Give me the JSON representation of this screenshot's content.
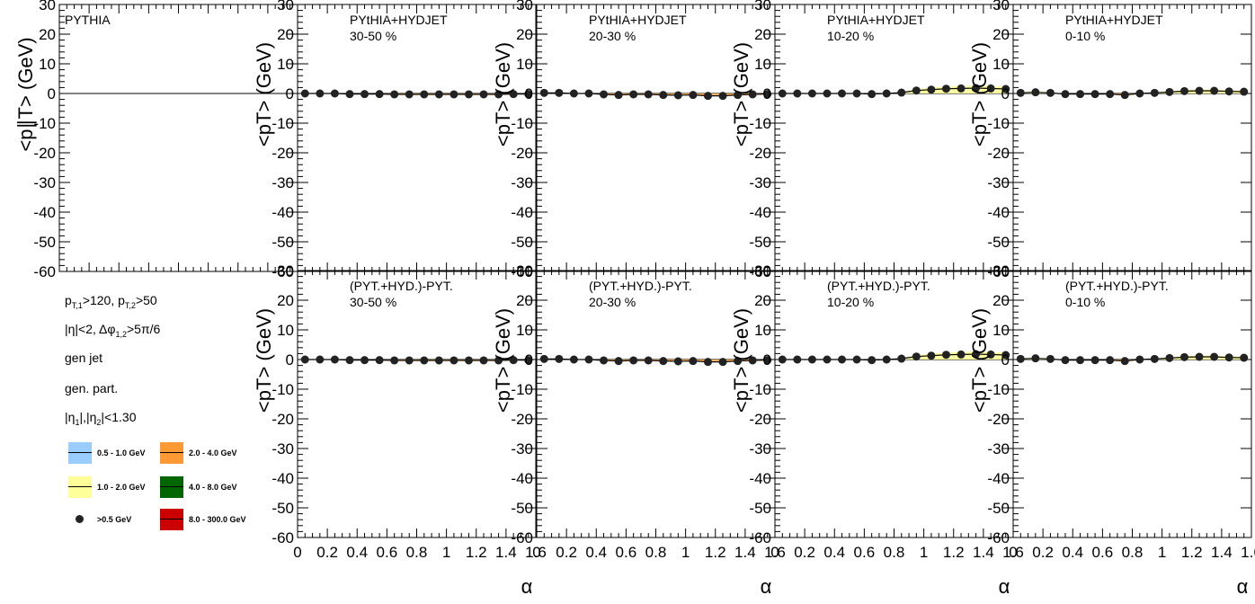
{
  "figure": {
    "xlabel": "α",
    "ylabel_top_first": "<p∥T> (GeV)",
    "ylabel_other": "<pT> (GeV)"
  },
  "legend": {
    "cuts": [
      "pT,1>120, pT,2>50",
      "|η|<2, Δφ1,2>5π/6",
      "gen jet",
      "gen. part.",
      "|η1|,|η2|<1.30"
    ],
    "entries": [
      {
        "label": "0.5 - 1.0 GeV",
        "color": "#99ccff"
      },
      {
        "label": "2.0 - 4.0 GeV",
        "color": "#ff9933"
      },
      {
        "label": "1.0 - 2.0 GeV",
        "color": "#ffff99"
      },
      {
        "label": "4.0 - 8.0 GeV",
        "color": "#006600"
      },
      {
        "label": ">0.5 GeV",
        "color": "#222222"
      },
      {
        "label": "8.0 - 300.0 GeV",
        "color": "#cc0000"
      }
    ]
  },
  "chart_data": [
    {
      "type": "scatter",
      "row": 0,
      "col": 0,
      "title": "PYTHIA",
      "subtitle": "",
      "ylim": [
        -60,
        30
      ],
      "xlim": [
        0,
        1.6
      ],
      "x": [],
      "y": []
    },
    {
      "type": "scatter",
      "row": 0,
      "col": 1,
      "title": "PYtHIA+HYDJET",
      "subtitle": "30-50 %",
      "ylim": [
        -60,
        30
      ],
      "xlim": [
        0,
        1.6
      ],
      "x": [
        0.05,
        0.15,
        0.25,
        0.35,
        0.45,
        0.55,
        0.65,
        0.75,
        0.85,
        0.95,
        1.05,
        1.15,
        1.25,
        1.35,
        1.45,
        1.55
      ],
      "y": [
        0,
        0,
        0,
        -0.2,
        -0.2,
        -0.2,
        -0.3,
        -0.3,
        -0.3,
        -0.3,
        -0.3,
        -0.3,
        -0.3,
        -0.3,
        -0.2,
        -0.2
      ]
    },
    {
      "type": "scatter",
      "row": 0,
      "col": 2,
      "title": "PYtHIA+HYDJET",
      "subtitle": "20-30 %",
      "ylim": [
        -60,
        30
      ],
      "xlim": [
        0,
        1.6
      ],
      "x": [
        0.05,
        0.15,
        0.25,
        0.35,
        0.45,
        0.55,
        0.65,
        0.75,
        0.85,
        0.95,
        1.05,
        1.15,
        1.25,
        1.35,
        1.45,
        1.55
      ],
      "y": [
        0.2,
        0.2,
        0,
        0,
        -0.3,
        -0.5,
        -0.3,
        -0.3,
        -0.5,
        -0.6,
        -0.5,
        -0.8,
        -0.8,
        -0.5,
        -0.3,
        -0.2
      ]
    },
    {
      "type": "scatter",
      "row": 0,
      "col": 3,
      "title": "PYtHIA+HYDJET",
      "subtitle": "10-20 %",
      "ylim": [
        -60,
        30
      ],
      "xlim": [
        0,
        1.6
      ],
      "x": [
        0.05,
        0.15,
        0.25,
        0.35,
        0.45,
        0.55,
        0.65,
        0.75,
        0.85,
        0.95,
        1.05,
        1.15,
        1.25,
        1.35,
        1.45,
        1.55
      ],
      "y": [
        0,
        0,
        0,
        0,
        0,
        0,
        -0.2,
        0,
        0.3,
        1,
        1.3,
        1.6,
        1.7,
        1.8,
        1.7,
        1.5
      ]
    },
    {
      "type": "scatter",
      "row": 0,
      "col": 4,
      "title": "PYtHIA+HYDJET",
      "subtitle": "0-10 %",
      "ylim": [
        -60,
        30
      ],
      "xlim": [
        0,
        1.6
      ],
      "x": [
        0.05,
        0.15,
        0.25,
        0.35,
        0.45,
        0.55,
        0.65,
        0.75,
        0.85,
        0.95,
        1.05,
        1.15,
        1.25,
        1.35,
        1.45,
        1.55
      ],
      "y": [
        0.2,
        0.4,
        0.2,
        -0.2,
        -0.2,
        -0.2,
        -0.2,
        -0.5,
        0,
        0.2,
        0.5,
        0.8,
        0.9,
        0.9,
        0.7,
        0.6
      ]
    },
    {
      "type": "scatter",
      "row": 1,
      "col": 1,
      "title": "(PYT.+HYD.)-PYT.",
      "subtitle": "30-50 %",
      "ylim": [
        -60,
        30
      ],
      "xlim": [
        0,
        1.6
      ],
      "x": [
        0.05,
        0.15,
        0.25,
        0.35,
        0.45,
        0.55,
        0.65,
        0.75,
        0.85,
        0.95,
        1.05,
        1.15,
        1.25,
        1.35,
        1.45,
        1.55
      ],
      "y": [
        0,
        0,
        0,
        -0.2,
        -0.2,
        -0.2,
        -0.3,
        -0.3,
        -0.3,
        -0.3,
        -0.3,
        -0.3,
        -0.3,
        -0.3,
        -0.2,
        -0.2
      ]
    },
    {
      "type": "scatter",
      "row": 1,
      "col": 2,
      "title": "(PYT.+HYD.)-PYT.",
      "subtitle": "20-30 %",
      "ylim": [
        -60,
        30
      ],
      "xlim": [
        0,
        1.6
      ],
      "x": [
        0.05,
        0.15,
        0.25,
        0.35,
        0.45,
        0.55,
        0.65,
        0.75,
        0.85,
        0.95,
        1.05,
        1.15,
        1.25,
        1.35,
        1.45,
        1.55
      ],
      "y": [
        0.2,
        0.2,
        0,
        0,
        -0.3,
        -0.5,
        -0.3,
        -0.3,
        -0.5,
        -0.6,
        -0.5,
        -0.8,
        -0.8,
        -0.5,
        -0.3,
        -0.2
      ]
    },
    {
      "type": "scatter",
      "row": 1,
      "col": 3,
      "title": "(PYT.+HYD.)-PYT.",
      "subtitle": "10-20 %",
      "ylim": [
        -60,
        30
      ],
      "xlim": [
        0,
        1.6
      ],
      "x": [
        0.05,
        0.15,
        0.25,
        0.35,
        0.45,
        0.55,
        0.65,
        0.75,
        0.85,
        0.95,
        1.05,
        1.15,
        1.25,
        1.35,
        1.45,
        1.55
      ],
      "y": [
        0,
        0,
        0,
        0,
        0,
        0,
        -0.2,
        0,
        0.3,
        1,
        1.3,
        1.6,
        1.7,
        1.8,
        1.7,
        1.5
      ]
    },
    {
      "type": "scatter",
      "row": 1,
      "col": 4,
      "title": "(PYT.+HYD.)-PYT.",
      "subtitle": "0-10 %",
      "ylim": [
        -60,
        30
      ],
      "xlim": [
        0,
        1.6
      ],
      "x": [
        0.05,
        0.15,
        0.25,
        0.35,
        0.45,
        0.55,
        0.65,
        0.75,
        0.85,
        0.95,
        1.05,
        1.15,
        1.25,
        1.35,
        1.45,
        1.55
      ],
      "y": [
        0.2,
        0.4,
        0.2,
        -0.2,
        -0.2,
        -0.2,
        -0.2,
        -0.5,
        0,
        0.2,
        0.5,
        0.8,
        0.9,
        0.9,
        0.7,
        0.6
      ]
    }
  ]
}
